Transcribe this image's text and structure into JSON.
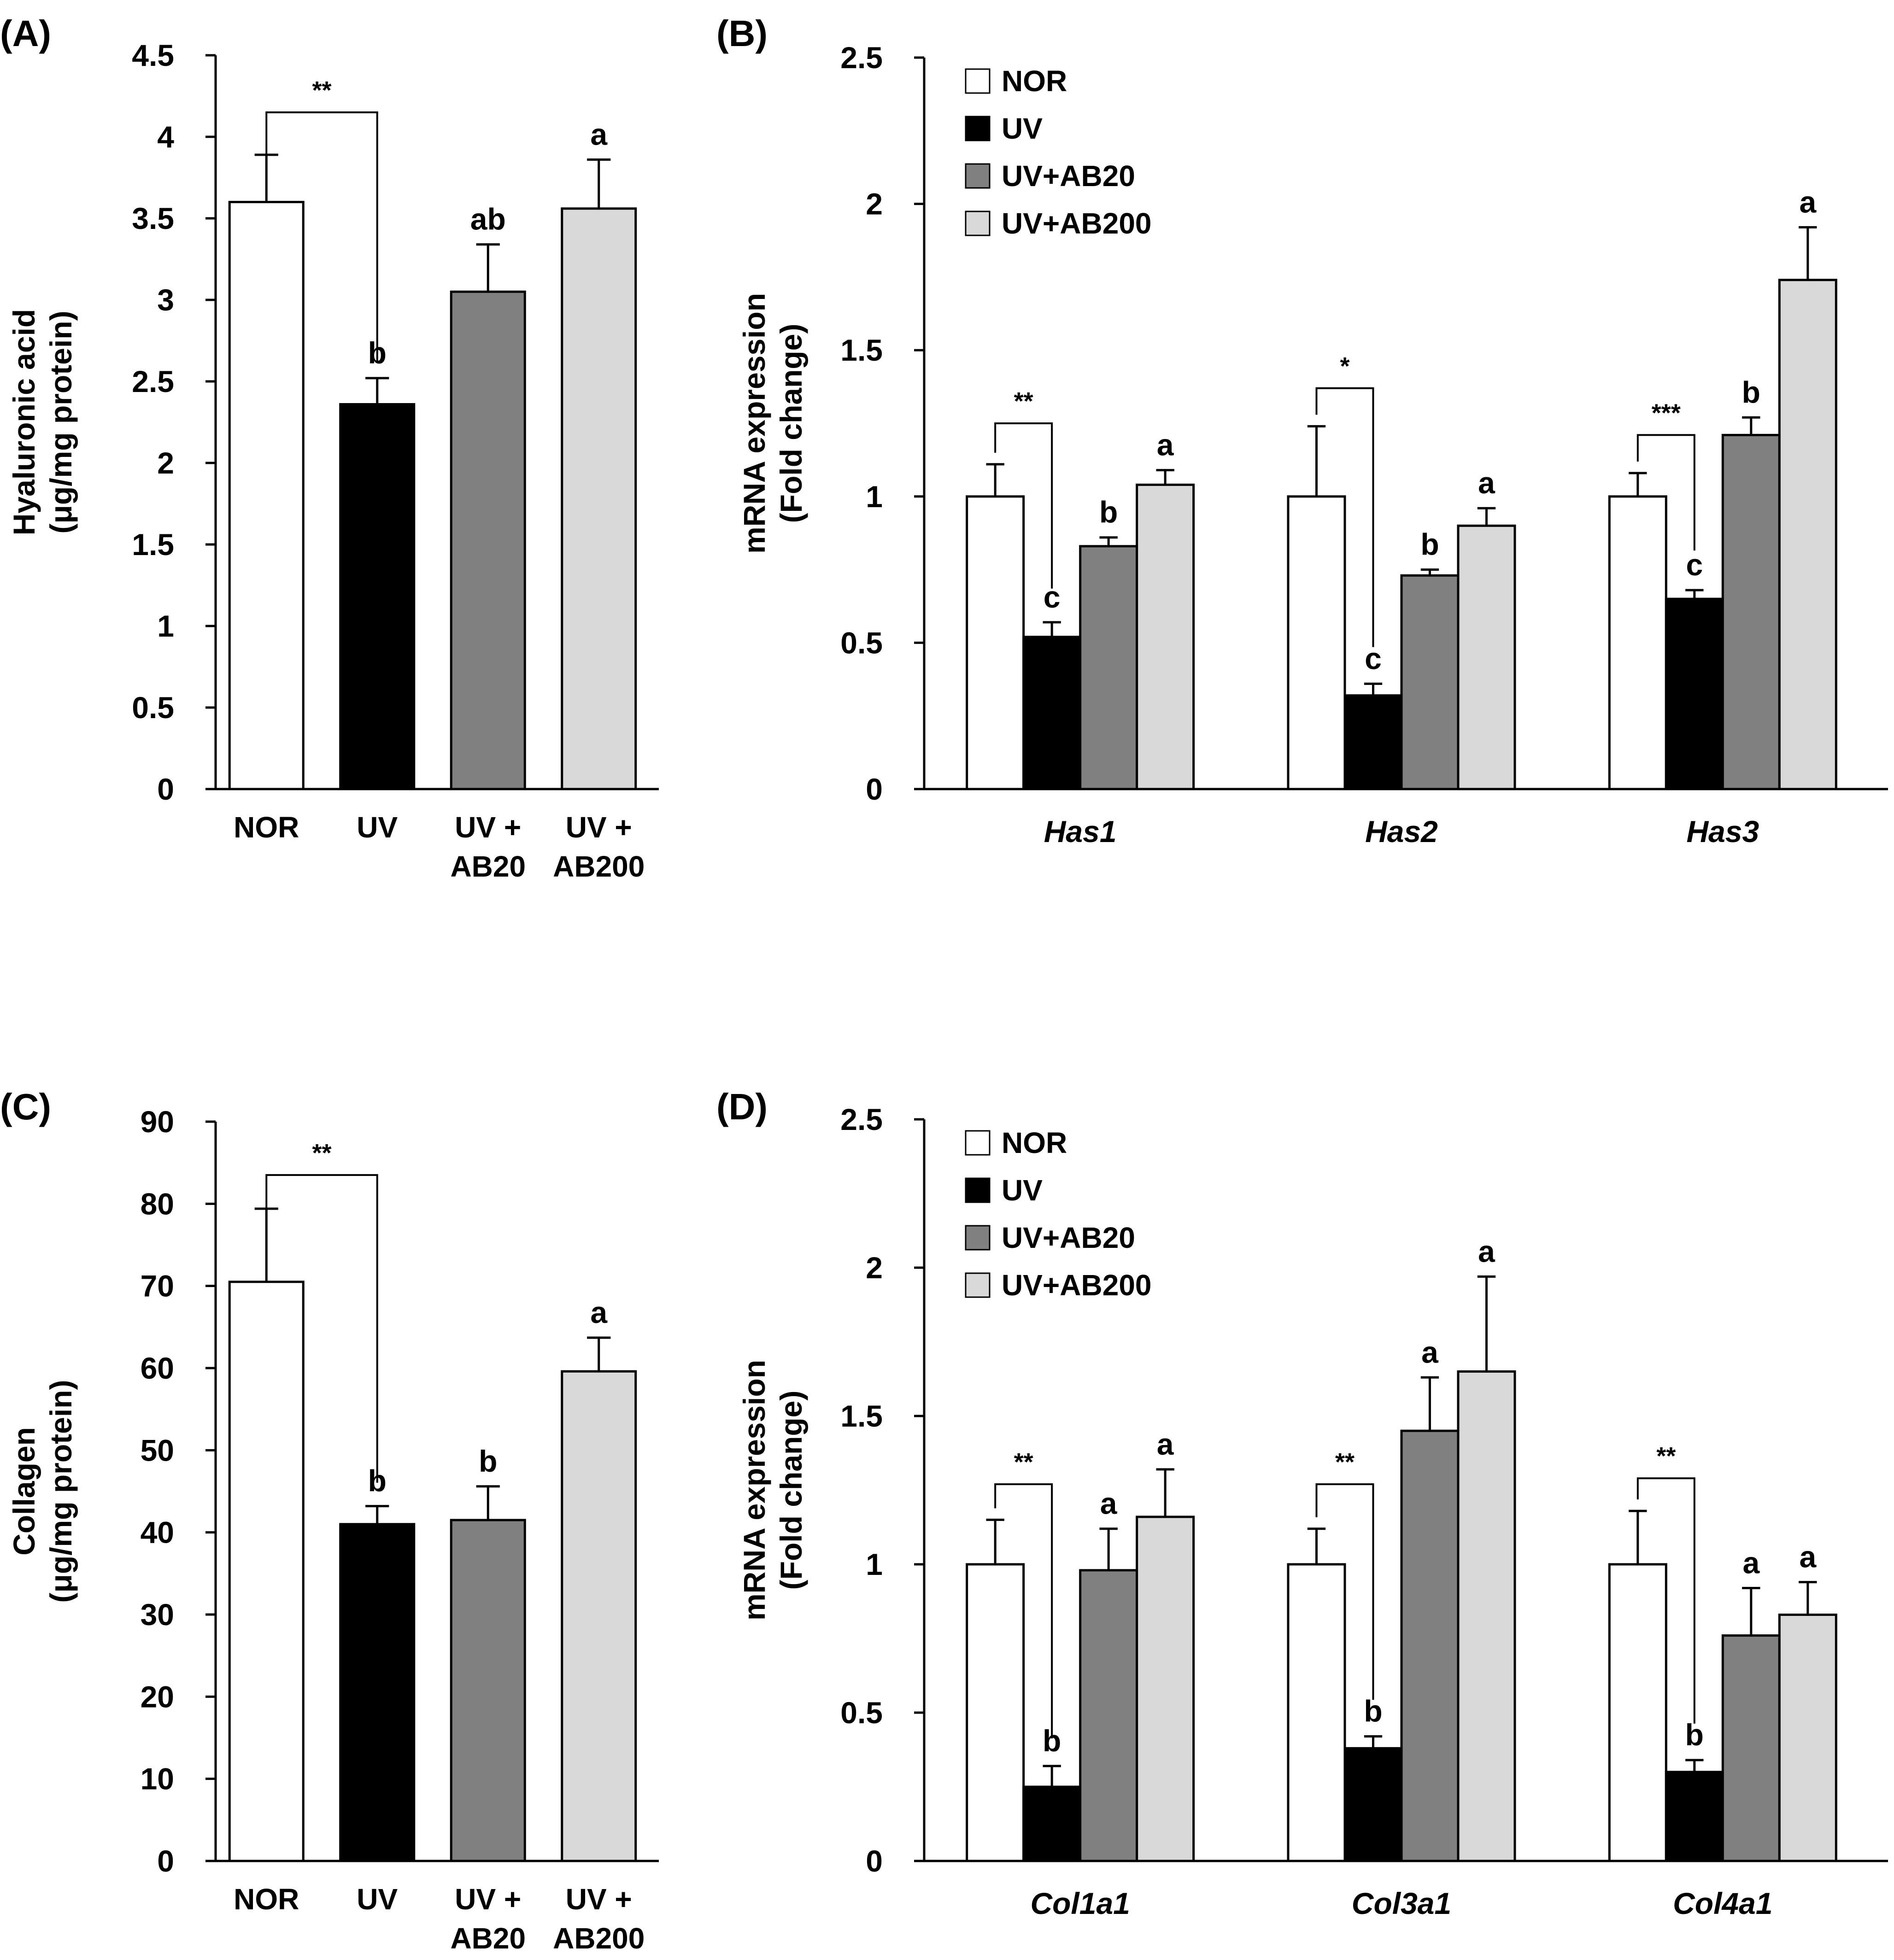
{
  "colors": {
    "NOR": "#ffffff",
    "UV": "#000000",
    "UV+AB20": "#808080",
    "UV+AB200": "#d9d9d9"
  },
  "chart_data": [
    {
      "id": "A",
      "panel_label": "(A)",
      "type": "bar",
      "ylabel": [
        "Hyaluronic acid",
        "(μg/mg protein)"
      ],
      "ylim": [
        0,
        4.5
      ],
      "yticks": [
        0,
        0.5,
        1,
        1.5,
        2,
        2.5,
        3,
        3.5,
        4,
        4.5
      ],
      "ytick_labels": [
        "0",
        "0.5",
        "1",
        "1.5",
        "2",
        "2.5",
        "3",
        "3.5",
        "4",
        "4.5"
      ],
      "categories": [
        [
          "NOR"
        ],
        [
          "UV"
        ],
        [
          "UV +",
          "AB20"
        ],
        [
          "UV +",
          "AB200"
        ]
      ],
      "series_keys": [
        "NOR",
        "UV",
        "UV+AB20",
        "UV+AB200"
      ],
      "values": [
        3.6,
        2.36,
        3.05,
        3.56
      ],
      "errors": [
        0.29,
        0.16,
        0.29,
        0.3
      ],
      "letters": [
        "",
        "b",
        "ab",
        "a"
      ],
      "comparisons": [
        {
          "from": 0,
          "to": 1,
          "label": "**",
          "y": 4.15
        }
      ]
    },
    {
      "id": "B",
      "panel_label": "(B)",
      "type": "grouped_bar",
      "ylabel": [
        "mRNA expression",
        "(Fold change)"
      ],
      "ylim": [
        0,
        2.5
      ],
      "yticks": [
        0,
        0.5,
        1,
        1.5,
        2,
        2.5
      ],
      "ytick_labels": [
        "0",
        "0.5",
        "1",
        "1.5",
        "2",
        "2.5"
      ],
      "groups": [
        "Has1",
        "Has2",
        "Has3"
      ],
      "legend": [
        "NOR",
        "UV",
        "UV+AB20",
        "UV+AB200"
      ],
      "series": [
        {
          "name": "NOR",
          "values": [
            1.0,
            1.0,
            1.0
          ],
          "errors": [
            0.11,
            0.24,
            0.08
          ],
          "letters": [
            "",
            "",
            ""
          ]
        },
        {
          "name": "UV",
          "values": [
            0.52,
            0.32,
            0.65
          ],
          "errors": [
            0.05,
            0.04,
            0.03
          ],
          "letters": [
            "c",
            "c",
            "c"
          ]
        },
        {
          "name": "UV+AB20",
          "values": [
            0.83,
            0.73,
            1.21
          ],
          "errors": [
            0.03,
            0.02,
            0.06
          ],
          "letters": [
            "b",
            "b",
            "b"
          ]
        },
        {
          "name": "UV+AB200",
          "values": [
            1.04,
            0.9,
            1.74
          ],
          "errors": [
            0.05,
            0.06,
            0.18
          ],
          "letters": [
            "a",
            "a",
            "a"
          ]
        }
      ],
      "comparisons": [
        {
          "group": 0,
          "label": "**",
          "y": 1.25
        },
        {
          "group": 1,
          "label": "*",
          "y": 1.37
        },
        {
          "group": 2,
          "label": "***",
          "y": 1.21
        }
      ]
    },
    {
      "id": "C",
      "panel_label": "(C)",
      "type": "bar",
      "ylabel": [
        "Collagen",
        "(μg/mg protein)"
      ],
      "ylim": [
        0,
        90
      ],
      "yticks": [
        0,
        10,
        20,
        30,
        40,
        50,
        60,
        70,
        80,
        90
      ],
      "ytick_labels": [
        "0",
        "10",
        "20",
        "30",
        "40",
        "50",
        "60",
        "70",
        "80",
        "90"
      ],
      "categories": [
        [
          "NOR"
        ],
        [
          "UV"
        ],
        [
          "UV +",
          "AB20"
        ],
        [
          "UV +",
          "AB200"
        ]
      ],
      "series_keys": [
        "NOR",
        "UV",
        "UV+AB20",
        "UV+AB200"
      ],
      "values": [
        70.5,
        41.0,
        41.5,
        59.6
      ],
      "errors": [
        8.9,
        2.2,
        4.1,
        4.1
      ],
      "letters": [
        "",
        "b",
        "b",
        "a"
      ],
      "comparisons": [
        {
          "from": 0,
          "to": 1,
          "label": "**",
          "y": 83.5
        }
      ]
    },
    {
      "id": "D",
      "panel_label": "(D)",
      "type": "grouped_bar",
      "ylabel": [
        "mRNA expression",
        "(Fold change)"
      ],
      "ylim": [
        0,
        2.5
      ],
      "yticks": [
        0,
        0.5,
        1,
        1.5,
        2,
        2.5
      ],
      "ytick_labels": [
        "0",
        "0.5",
        "1",
        "1.5",
        "2",
        "2.5"
      ],
      "groups": [
        "Col1a1",
        "Col3a1",
        "Col4a1"
      ],
      "legend": [
        "NOR",
        "UV",
        "UV+AB20",
        "UV+AB200"
      ],
      "series": [
        {
          "name": "NOR",
          "values": [
            1.0,
            1.0,
            1.0
          ],
          "errors": [
            0.15,
            0.12,
            0.18
          ],
          "letters": [
            "",
            "",
            ""
          ]
        },
        {
          "name": "UV",
          "values": [
            0.25,
            0.38,
            0.3
          ],
          "errors": [
            0.07,
            0.04,
            0.04
          ],
          "letters": [
            "b",
            "b",
            "b"
          ]
        },
        {
          "name": "UV+AB20",
          "values": [
            0.98,
            1.45,
            0.76
          ],
          "errors": [
            0.14,
            0.18,
            0.16
          ],
          "letters": [
            "a",
            "a",
            "a"
          ]
        },
        {
          "name": "UV+AB200",
          "values": [
            1.16,
            1.65,
            0.83
          ],
          "errors": [
            0.16,
            0.32,
            0.11
          ],
          "letters": [
            "a",
            "a",
            "a"
          ]
        }
      ],
      "comparisons": [
        {
          "group": 0,
          "label": "**",
          "y": 1.27
        },
        {
          "group": 1,
          "label": "**",
          "y": 1.27
        },
        {
          "group": 2,
          "label": "**",
          "y": 1.29
        }
      ]
    }
  ]
}
